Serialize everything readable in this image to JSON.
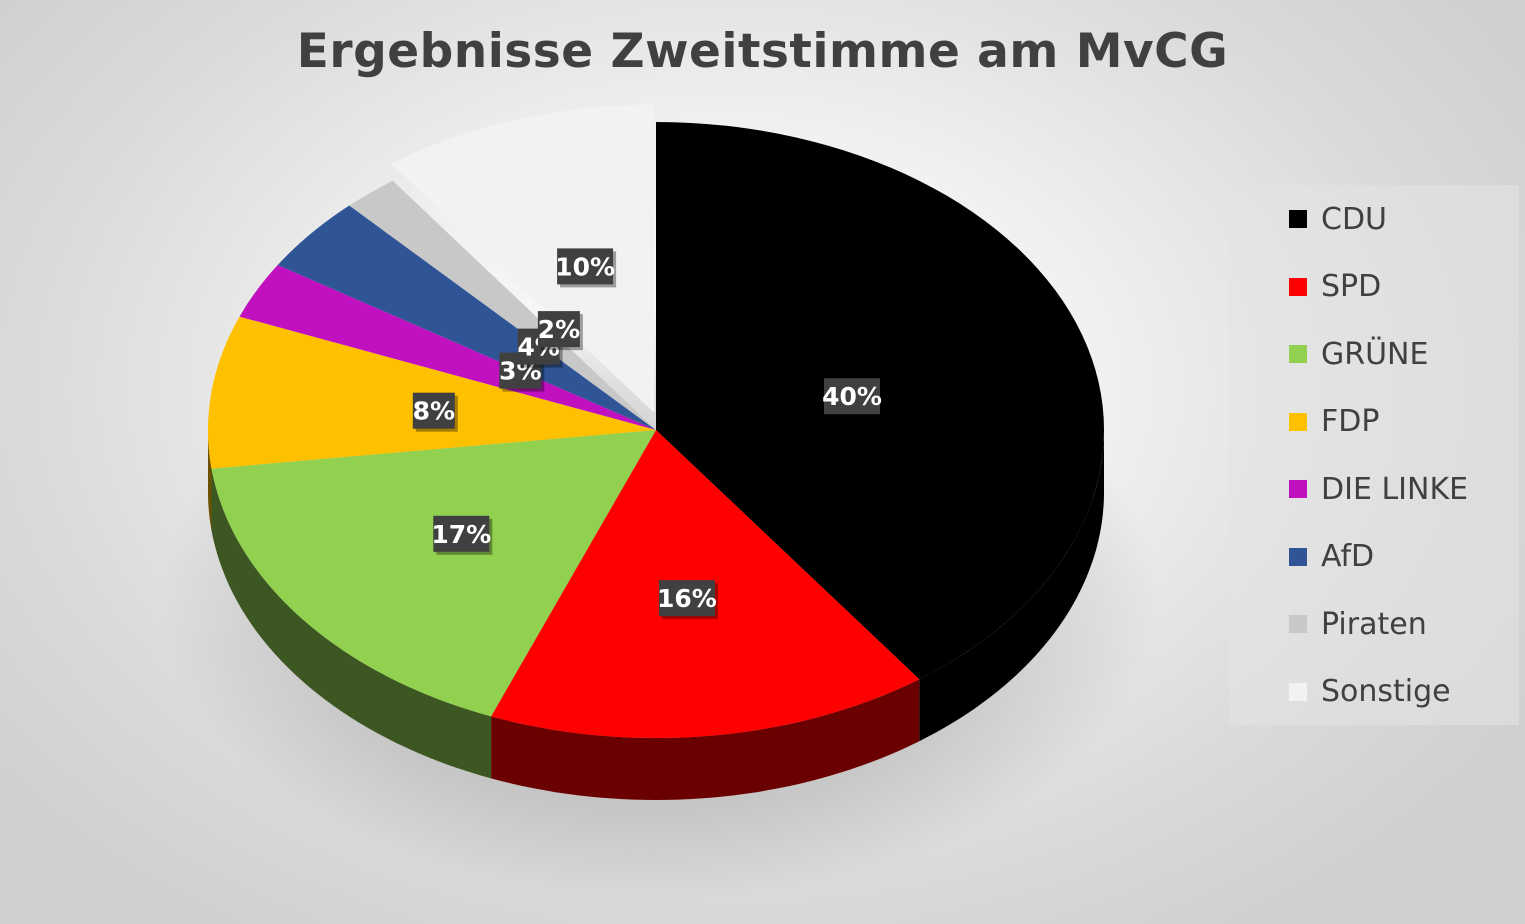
{
  "chart_data": {
    "type": "pie",
    "title": "Ergebnisse Zweitstimme am MvCG",
    "categories": [
      "CDU",
      "SPD",
      "GRÜNE",
      "FDP",
      "DIE LINKE",
      "AfD",
      "Piraten",
      "Sonstige"
    ],
    "values": [
      40,
      16,
      17,
      8,
      3,
      4,
      2,
      10
    ],
    "labels": [
      "40%",
      "16%",
      "17%",
      "8%",
      "3%",
      "4%",
      "2%",
      "10%"
    ],
    "colors": [
      "#000000",
      "#ff0000",
      "#92d050",
      "#ffc000",
      "#c010c0",
      "#2f5597",
      "#c8c8c8",
      "#f2f2f2"
    ],
    "legend_position": "right",
    "start_angle": "top, clockwise"
  }
}
